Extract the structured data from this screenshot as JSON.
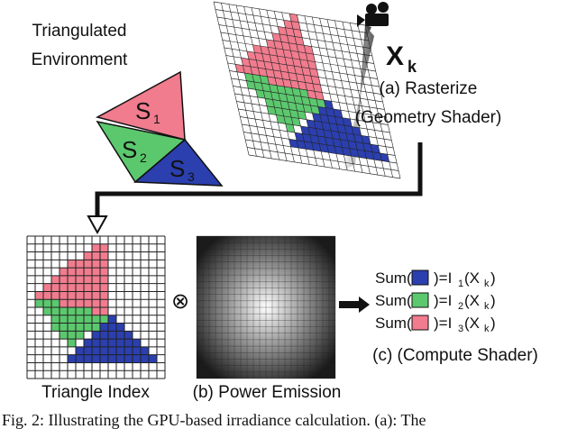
{
  "environment_label": [
    "Triangulated",
    "Environment"
  ],
  "triangles": [
    {
      "main": "S",
      "sub": "1"
    },
    {
      "main": "S",
      "sub": "2"
    },
    {
      "main": "S",
      "sub": "3"
    }
  ],
  "viewpoint": {
    "main": "X",
    "sub": "k"
  },
  "step_a": [
    "(a) Rasterize",
    "(Geometry Shader)"
  ],
  "triangle_index_label": "Triangle Index",
  "step_b": "(b) Power Emission",
  "operator": "⊗",
  "equations": [
    {
      "prefix": "Sum(",
      "mid": ")=I",
      "index": "1",
      "open": "(X",
      "k": "k",
      "close": ")"
    },
    {
      "prefix": "Sum(",
      "mid": ")=I",
      "index": "2",
      "open": "(X",
      "k": "k",
      "close": ")"
    },
    {
      "prefix": "Sum(",
      "mid": ")=I",
      "index": "3",
      "open": "(X",
      "k": "k",
      "close": ")"
    }
  ],
  "step_c": "(c) (Compute Shader)",
  "caption": "Fig. 2:  Illustrating the GPU-based irradiance calculation. (a): The"
}
